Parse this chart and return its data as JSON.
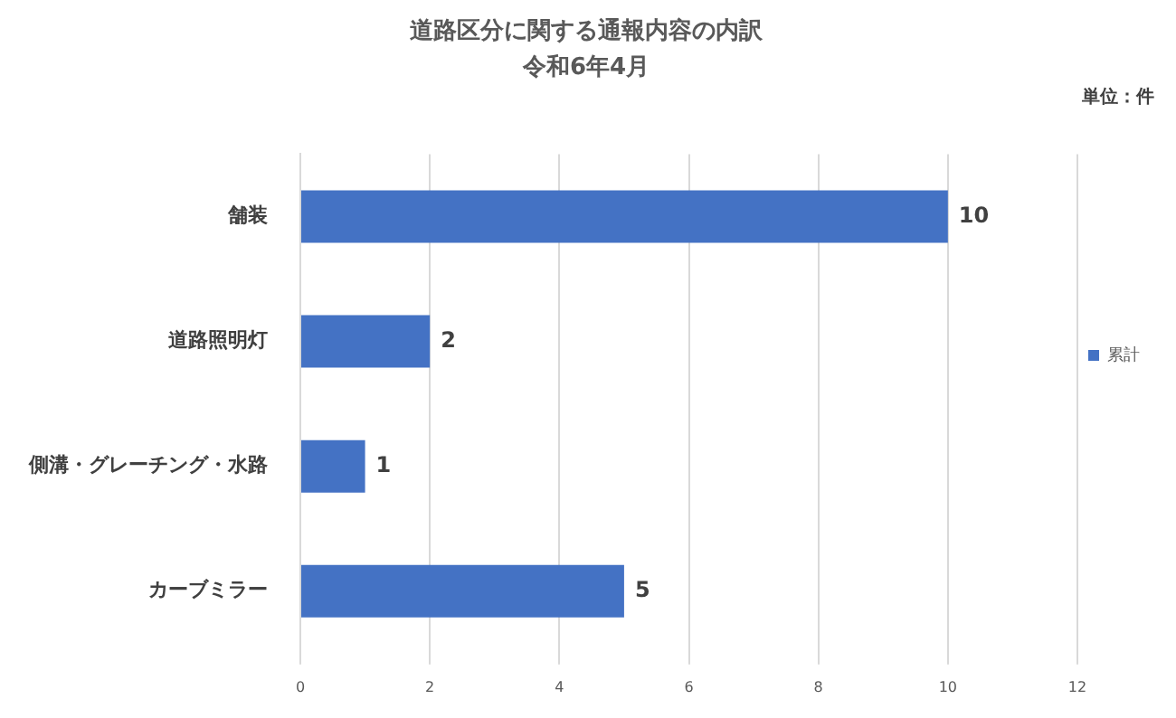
{
  "chart_data": {
    "type": "bar",
    "orientation": "horizontal",
    "title": "道路区分に関する通報内容の内訳",
    "subtitle": "令和6年4月",
    "annotations": [
      "単位：件"
    ],
    "categories": [
      "舗装",
      "道路照明灯",
      "側溝・グレーチング・水路",
      "カーブミラー"
    ],
    "series": [
      {
        "name": "累計",
        "color": "#4472c4",
        "values": [
          10,
          2,
          1,
          5
        ]
      }
    ],
    "xlim": [
      0,
      12
    ],
    "xticks": [
      0,
      2,
      4,
      6,
      8,
      10,
      12
    ],
    "grid": "x",
    "legend": "right",
    "data_labels": true
  }
}
